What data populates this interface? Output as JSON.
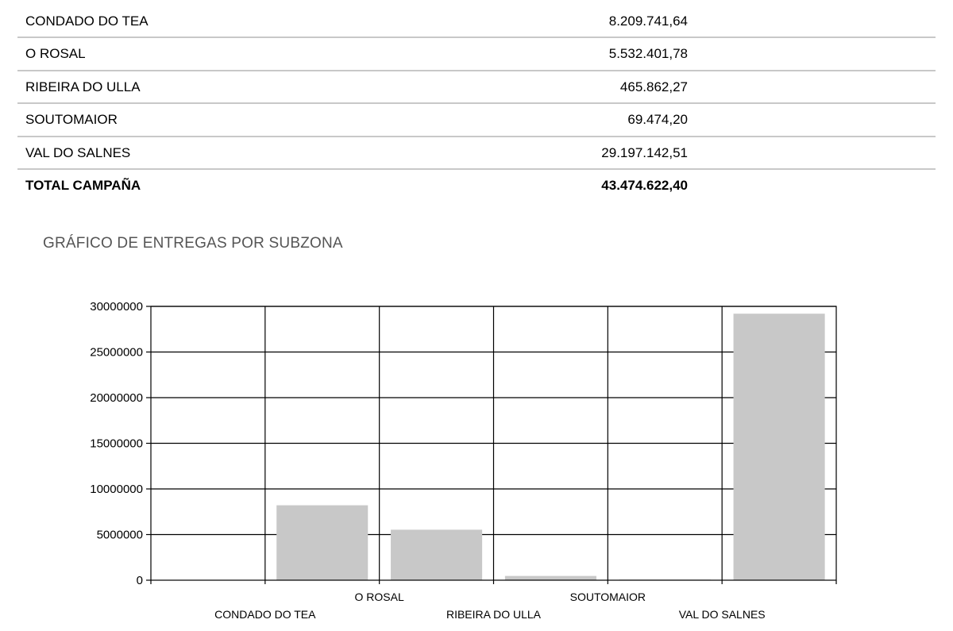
{
  "table": {
    "rows": [
      {
        "name": "CONDADO DO TEA",
        "value": "8.209.741,64"
      },
      {
        "name": "O ROSAL",
        "value": "5.532.401,78"
      },
      {
        "name": "RIBEIRA DO ULLA",
        "value": "465.862,27"
      },
      {
        "name": "SOUTOMAIOR",
        "value": "69.474,20"
      },
      {
        "name": "VAL DO SALNES",
        "value": "29.197.142,51"
      }
    ],
    "total": {
      "name": "TOTAL CAMPAÑA",
      "value": "43.474.622,40"
    }
  },
  "chart_title": "GRÁFICO DE ENTREGAS POR SUBZONA",
  "chart_data": {
    "type": "bar",
    "categories": [
      "CONDADO DO TEA",
      "O ROSAL",
      "RIBEIRA DO ULLA",
      "SOUTOMAIOR",
      "VAL DO SALNES"
    ],
    "values": [
      8209741.64,
      5532401.78,
      465862.27,
      69474.2,
      29197142.51
    ],
    "ylim": [
      0,
      30000000
    ],
    "yticks": [
      "0",
      "5000000",
      "10000000",
      "15000000",
      "20000000",
      "25000000",
      "30000000"
    ],
    "grid": true,
    "legend": "none",
    "bar_color": "#c8c8c8"
  }
}
